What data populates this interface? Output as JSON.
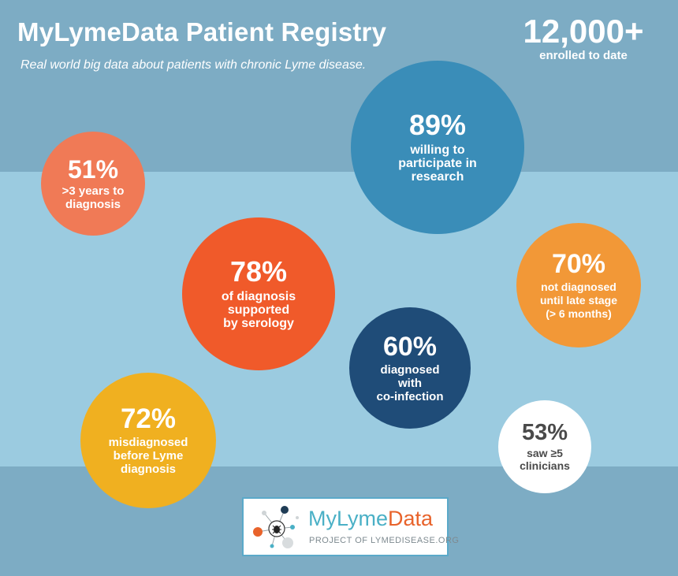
{
  "header": {
    "title": "MyLymeData Patient Registry",
    "subtitle": "Real world big data about patients with chronic Lyme disease."
  },
  "enrolled": {
    "value": "12,000+",
    "label": "enrolled to date"
  },
  "stats": [
    {
      "pct": "51%",
      "label": ">3 years to\ndiagnosis",
      "color": "#f07a56"
    },
    {
      "pct": "89%",
      "label": "willing to\nparticipate in\nresearch",
      "color": "#3a8db8"
    },
    {
      "pct": "78%",
      "label": "of diagnosis\nsupported\nby serology",
      "color": "#f05a2a"
    },
    {
      "pct": "70%",
      "label": "not diagnosed\nuntil late stage\n(> 6 months)",
      "color": "#f29837"
    },
    {
      "pct": "60%",
      "label": "diagnosed\nwith\nco-infection",
      "color": "#1f4c78"
    },
    {
      "pct": "72%",
      "label": "misdiagnosed\nbefore Lyme\ndiagnosis",
      "color": "#f0b020"
    },
    {
      "pct": "53%",
      "label": "saw ≥5\nclinicians",
      "color": "#ffffff"
    }
  ],
  "logo": {
    "name_part1": "MyLyme",
    "name_part2": "Data",
    "tagline": "PROJECT OF LYMEDISEASE.ORG"
  }
}
